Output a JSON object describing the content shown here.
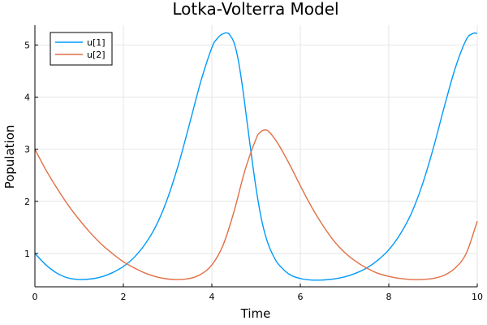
{
  "chart_data": {
    "type": "line",
    "title": "Lotka-Volterra Model",
    "xlabel": "Time",
    "ylabel": "Population",
    "xlim": [
      0,
      10
    ],
    "ylim": [
      0.36,
      5.38
    ],
    "xticks": [
      0,
      2,
      4,
      6,
      8,
      10
    ],
    "yticks": [
      1,
      2,
      3,
      4,
      5
    ],
    "grid": true,
    "legend_position": "top-left",
    "series": [
      {
        "name": "u[1]",
        "color": "#009AFA",
        "x": [
          0,
          0.25,
          0.5,
          0.75,
          1.0,
          1.25,
          1.5,
          1.75,
          2.0,
          2.25,
          2.5,
          2.75,
          3.0,
          3.25,
          3.5,
          3.75,
          4.0,
          4.1,
          4.2,
          4.3,
          4.35,
          4.4,
          4.5,
          4.6,
          4.7,
          4.8,
          4.9,
          5.0,
          5.1,
          5.2,
          5.3,
          5.4,
          5.5,
          5.75,
          6.0,
          6.25,
          6.5,
          6.63,
          6.75,
          7.0,
          7.25,
          7.5,
          7.75,
          8.0,
          8.25,
          8.5,
          8.75,
          9.0,
          9.25,
          9.5,
          9.75,
          9.9,
          10.0
        ],
        "y": [
          1.0,
          0.78,
          0.62,
          0.53,
          0.5,
          0.51,
          0.55,
          0.63,
          0.75,
          0.93,
          1.19,
          1.55,
          2.06,
          2.72,
          3.5,
          4.3,
          4.95,
          5.1,
          5.19,
          5.23,
          5.23,
          5.2,
          5.05,
          4.7,
          4.15,
          3.5,
          2.85,
          2.25,
          1.75,
          1.38,
          1.12,
          0.94,
          0.8,
          0.6,
          0.52,
          0.49,
          0.49,
          0.5,
          0.51,
          0.55,
          0.62,
          0.72,
          0.87,
          1.07,
          1.36,
          1.75,
          2.3,
          3.0,
          3.8,
          4.55,
          5.1,
          5.22,
          5.22
        ]
      },
      {
        "name": "u[2]",
        "color": "#E26F46",
        "x": [
          0,
          0.25,
          0.5,
          0.75,
          1.0,
          1.25,
          1.5,
          1.75,
          2.0,
          2.25,
          2.5,
          2.75,
          3.0,
          3.25,
          3.5,
          3.75,
          4.0,
          4.25,
          4.5,
          4.75,
          5.0,
          5.1,
          5.2,
          5.3,
          5.5,
          5.75,
          6.0,
          6.25,
          6.5,
          6.75,
          7.0,
          7.25,
          7.5,
          7.75,
          8.0,
          8.25,
          8.5,
          8.75,
          9.0,
          9.25,
          9.5,
          9.75,
          10.0
        ],
        "y": [
          3.0,
          2.6,
          2.25,
          1.93,
          1.65,
          1.4,
          1.18,
          1.0,
          0.84,
          0.72,
          0.62,
          0.55,
          0.51,
          0.5,
          0.52,
          0.6,
          0.78,
          1.15,
          1.8,
          2.6,
          3.2,
          3.33,
          3.37,
          3.33,
          3.1,
          2.72,
          2.3,
          1.9,
          1.55,
          1.25,
          1.02,
          0.85,
          0.72,
          0.62,
          0.56,
          0.52,
          0.5,
          0.5,
          0.52,
          0.58,
          0.72,
          1.0,
          1.62
        ]
      }
    ]
  }
}
